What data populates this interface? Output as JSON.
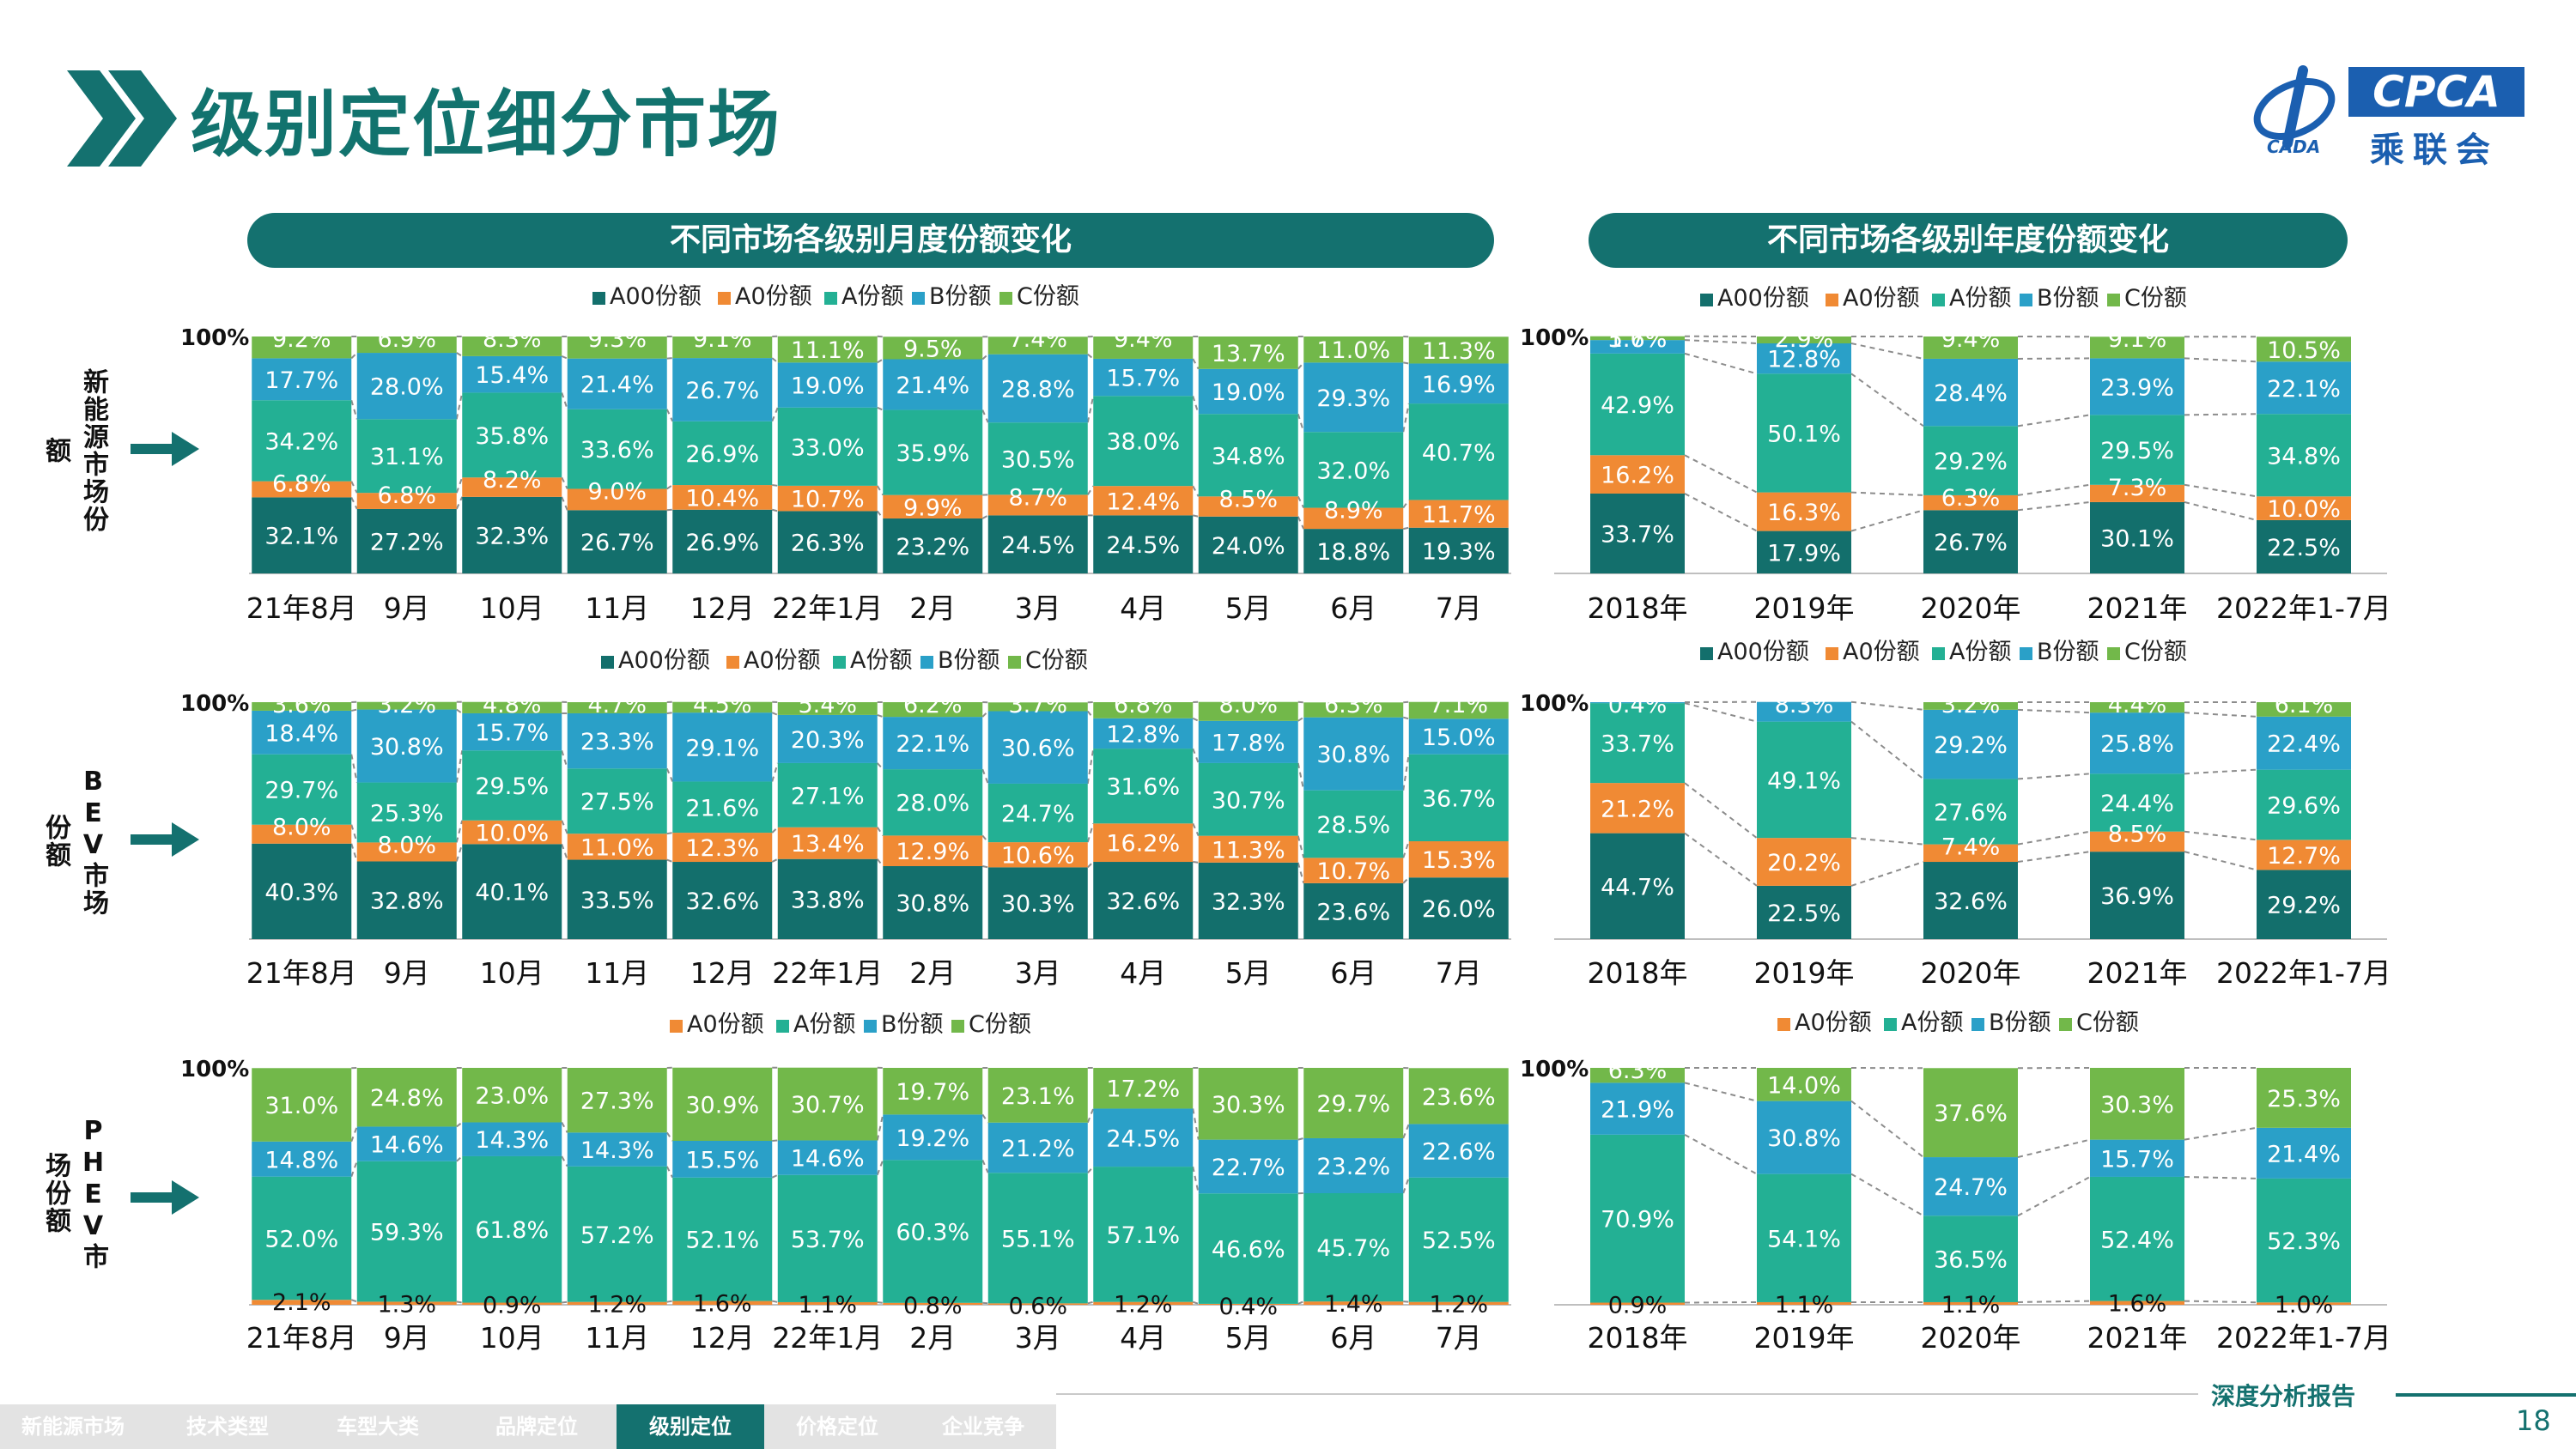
{
  "page": {
    "title": "级别定位细分市场",
    "monthly_banner": "不同市场各级别月度份额变化",
    "yearly_banner": "不同市场各级别年度份额变化",
    "report_tag": "深度分析报告",
    "page_number": "18"
  },
  "logo": {
    "text": "CPCA",
    "sub": "乘联会",
    "mark_text": "CADA"
  },
  "row_labels": [
    "新能源市场份额",
    "BEV市场份额",
    "PHEV市场份额"
  ],
  "footer_tabs": [
    {
      "label": "新能源市场",
      "active": false
    },
    {
      "label": "技术类型",
      "active": false
    },
    {
      "label": "车型大类",
      "active": false
    },
    {
      "label": "品牌定位",
      "active": false
    },
    {
      "label": "级别定位",
      "active": true
    },
    {
      "label": "价格定位",
      "active": false
    },
    {
      "label": "企业竞争",
      "active": false
    }
  ],
  "colors": {
    "A00份额": "#136f6c",
    "A0份额": "#f08a34",
    "A份额": "#23b094",
    "B份额": "#2aa0c8",
    "C份额": "#72b84a",
    "brand": "#14716f"
  },
  "chart_data": [
    {
      "id": "nev-monthly",
      "type": "bar",
      "stacked": true,
      "ylim": [
        0,
        100
      ],
      "ytick_label": "100%",
      "categories": [
        "21年8月",
        "9月",
        "10月",
        "11月",
        "12月",
        "22年1月",
        "2月",
        "3月",
        "4月",
        "5月",
        "6月",
        "7月"
      ],
      "series": [
        {
          "name": "A00份额",
          "values": [
            32.1,
            27.2,
            32.3,
            26.7,
            26.9,
            26.3,
            23.2,
            24.5,
            24.5,
            24.0,
            18.8,
            19.3
          ]
        },
        {
          "name": "A0份额",
          "values": [
            6.8,
            6.8,
            8.2,
            9.0,
            10.4,
            10.7,
            9.9,
            8.7,
            12.4,
            8.5,
            8.9,
            11.7
          ]
        },
        {
          "name": "A份额",
          "values": [
            34.2,
            31.1,
            35.8,
            33.6,
            26.9,
            33.0,
            35.9,
            30.5,
            38.0,
            34.8,
            32.0,
            40.7
          ]
        },
        {
          "name": "B份额",
          "values": [
            17.7,
            28.0,
            15.4,
            21.4,
            26.7,
            19.0,
            21.4,
            28.8,
            15.7,
            19.0,
            29.3,
            16.9
          ]
        },
        {
          "name": "C份额",
          "values": [
            9.2,
            6.9,
            8.3,
            9.3,
            9.1,
            11.1,
            9.5,
            7.4,
            9.4,
            13.7,
            11.0,
            11.3
          ]
        }
      ]
    },
    {
      "id": "nev-yearly",
      "type": "bar",
      "stacked": true,
      "ylim": [
        0,
        100
      ],
      "ytick_label": "100%",
      "categories": [
        "2018年",
        "2019年",
        "2020年",
        "2021年",
        "2022年1-7月"
      ],
      "series": [
        {
          "name": "A00份额",
          "values": [
            33.7,
            17.9,
            26.7,
            30.1,
            22.5
          ]
        },
        {
          "name": "A0份额",
          "values": [
            16.2,
            16.3,
            6.3,
            7.3,
            10.0
          ]
        },
        {
          "name": "A份额",
          "values": [
            42.9,
            50.1,
            29.2,
            29.5,
            34.8
          ]
        },
        {
          "name": "B份额",
          "values": [
            5.7,
            12.8,
            28.4,
            23.9,
            22.1
          ]
        },
        {
          "name": "C份额",
          "values": [
            1.6,
            2.9,
            9.4,
            9.1,
            10.5
          ]
        }
      ]
    },
    {
      "id": "bev-monthly",
      "type": "bar",
      "stacked": true,
      "ylim": [
        0,
        100
      ],
      "ytick_label": "100%",
      "categories": [
        "21年8月",
        "9月",
        "10月",
        "11月",
        "12月",
        "22年1月",
        "2月",
        "3月",
        "4月",
        "5月",
        "6月",
        "7月"
      ],
      "series": [
        {
          "name": "A00份额",
          "values": [
            40.3,
            32.8,
            40.1,
            33.5,
            32.6,
            33.8,
            30.8,
            30.3,
            32.6,
            32.3,
            23.6,
            26.0
          ]
        },
        {
          "name": "A0份额",
          "values": [
            8.0,
            8.0,
            10.0,
            11.0,
            12.3,
            13.4,
            12.9,
            10.6,
            16.2,
            11.3,
            10.7,
            15.3
          ]
        },
        {
          "name": "A份额",
          "values": [
            29.7,
            25.3,
            29.5,
            27.5,
            21.6,
            27.1,
            28.0,
            24.7,
            31.6,
            30.7,
            28.5,
            36.7
          ]
        },
        {
          "name": "B份额",
          "values": [
            18.4,
            30.8,
            15.7,
            23.3,
            29.1,
            20.3,
            22.1,
            30.6,
            12.8,
            17.8,
            30.8,
            15.0
          ]
        },
        {
          "name": "C份额",
          "values": [
            3.6,
            3.2,
            4.8,
            4.7,
            4.5,
            5.4,
            6.2,
            3.7,
            6.8,
            8.0,
            6.3,
            7.1
          ]
        }
      ]
    },
    {
      "id": "bev-yearly",
      "type": "bar",
      "stacked": true,
      "ylim": [
        0,
        100
      ],
      "ytick_label": "100%",
      "categories": [
        "2018年",
        "2019年",
        "2020年",
        "2021年",
        "2022年1-7月"
      ],
      "series": [
        {
          "name": "A00份额",
          "values": [
            44.7,
            22.5,
            32.6,
            36.9,
            29.2
          ]
        },
        {
          "name": "A0份额",
          "values": [
            21.2,
            20.2,
            7.4,
            8.5,
            12.7
          ]
        },
        {
          "name": "A份额",
          "values": [
            33.7,
            49.1,
            27.6,
            24.4,
            29.6
          ]
        },
        {
          "name": "B份额",
          "values": [
            0.4,
            8.3,
            29.2,
            25.8,
            22.4
          ]
        },
        {
          "name": "C份额",
          "values": [
            null,
            null,
            3.2,
            4.4,
            6.1
          ]
        }
      ]
    },
    {
      "id": "phev-monthly",
      "type": "bar",
      "stacked": true,
      "ylim": [
        0,
        100
      ],
      "ytick_label": "100%",
      "categories": [
        "21年8月",
        "9月",
        "10月",
        "11月",
        "12月",
        "22年1月",
        "2月",
        "3月",
        "4月",
        "5月",
        "6月",
        "7月"
      ],
      "series": [
        {
          "name": "A0份额",
          "values": [
            2.1,
            1.3,
            0.9,
            1.2,
            1.6,
            1.1,
            0.8,
            0.6,
            1.2,
            0.4,
            1.4,
            1.2
          ]
        },
        {
          "name": "A份额",
          "values": [
            52.0,
            59.3,
            61.8,
            57.2,
            52.1,
            53.7,
            60.3,
            55.1,
            57.1,
            46.6,
            45.7,
            52.5
          ]
        },
        {
          "name": "B份额",
          "values": [
            14.8,
            14.6,
            14.3,
            14.3,
            15.5,
            14.6,
            19.2,
            21.2,
            24.5,
            22.7,
            23.2,
            22.6
          ]
        },
        {
          "name": "C份额",
          "values": [
            31.0,
            24.8,
            23.0,
            27.3,
            30.9,
            30.7,
            19.7,
            23.1,
            17.2,
            30.3,
            29.7,
            23.6
          ]
        }
      ]
    },
    {
      "id": "phev-yearly",
      "type": "bar",
      "stacked": true,
      "ylim": [
        0,
        100
      ],
      "ytick_label": "100%",
      "categories": [
        "2018年",
        "2019年",
        "2020年",
        "2021年",
        "2022年1-7月"
      ],
      "series": [
        {
          "name": "A0份额",
          "values": [
            0.9,
            1.1,
            1.1,
            1.6,
            1.0
          ]
        },
        {
          "name": "A份额",
          "values": [
            70.9,
            54.1,
            36.5,
            52.4,
            52.3
          ]
        },
        {
          "name": "B份额",
          "values": [
            21.9,
            30.8,
            24.7,
            15.7,
            21.4
          ]
        },
        {
          "name": "C份额",
          "values": [
            6.3,
            14.0,
            37.6,
            30.3,
            25.3
          ]
        }
      ]
    }
  ]
}
